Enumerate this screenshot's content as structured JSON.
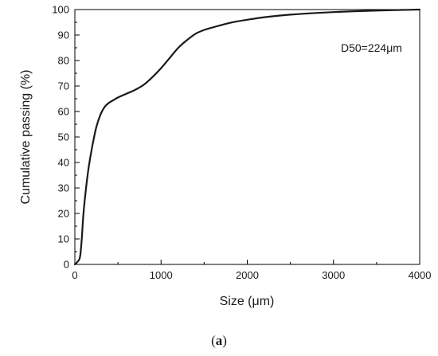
{
  "chart_data": {
    "type": "line",
    "xlabel": "Size (μm)",
    "ylabel": "Cumulative passing (%)",
    "xlim": [
      0,
      4000
    ],
    "ylim": [
      0,
      100
    ],
    "xticks": [
      0,
      1000,
      2000,
      3000,
      4000
    ],
    "yticks": [
      0,
      10,
      20,
      30,
      40,
      50,
      60,
      70,
      80,
      90,
      100
    ],
    "annotation": "D50=224μm",
    "legend": "none",
    "grid": false,
    "series": [
      {
        "x": [
          0,
          30,
          60,
          80,
          100,
          130,
          160,
          200,
          250,
          300,
          350,
          400,
          450,
          500,
          600,
          700,
          800,
          900,
          1000,
          1100,
          1200,
          1300,
          1400,
          1500,
          1600,
          1800,
          2000,
          2200,
          2500,
          3000,
          3500,
          4000
        ],
        "y": [
          0,
          1,
          3,
          10,
          20,
          30,
          38,
          46,
          54,
          59,
          62,
          63.5,
          64.5,
          65.5,
          67,
          68.5,
          70.5,
          73.5,
          77,
          81,
          85,
          88,
          90.5,
          92,
          93,
          94.8,
          96,
          97,
          98,
          99,
          99.6,
          100
        ]
      }
    ]
  },
  "caption": {
    "open": "(",
    "letter": "a",
    "close": ")"
  }
}
